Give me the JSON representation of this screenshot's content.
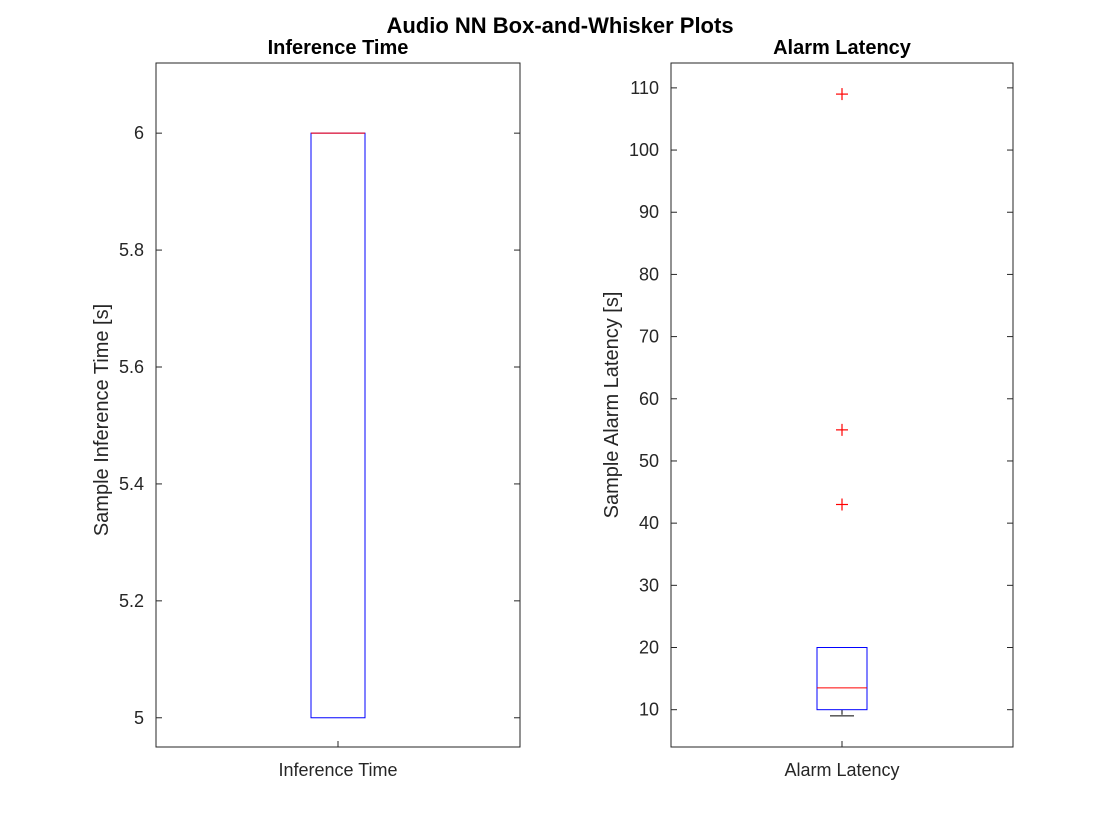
{
  "figure_title": "Audio NN Box-and-Whisker Plots",
  "chart_data": [
    {
      "type": "box",
      "title": "Inference Time",
      "xlabel": "",
      "ylabel": "Sample Inference Time [s]",
      "categories": [
        "Inference Time"
      ],
      "ylim": [
        4.95,
        6.12
      ],
      "yticks": [
        5,
        5.2,
        5.4,
        5.6,
        5.8,
        6
      ],
      "ytick_labels": [
        "5",
        "5.2",
        "5.4",
        "5.6",
        "5.8",
        "6"
      ],
      "box": {
        "whisker_low": 5,
        "q1": 5,
        "median": 6,
        "q3": 6,
        "whisker_high": 6
      },
      "outliers": [],
      "colors": {
        "box": "#0000ff",
        "median": "#ff0000",
        "whisker": "#000000",
        "outlier": "#ff0000"
      }
    },
    {
      "type": "box",
      "title": "Alarm Latency",
      "xlabel": "",
      "ylabel": "Sample Alarm Latency [s]",
      "categories": [
        "Alarm Latency"
      ],
      "ylim": [
        4,
        114
      ],
      "yticks": [
        10,
        20,
        30,
        40,
        50,
        60,
        70,
        80,
        90,
        100,
        110
      ],
      "ytick_labels": [
        "10",
        "20",
        "30",
        "40",
        "50",
        "60",
        "70",
        "80",
        "90",
        "100",
        "110"
      ],
      "box": {
        "whisker_low": 9,
        "q1": 10,
        "median": 13.5,
        "q3": 20,
        "whisker_high": 20
      },
      "outliers": [
        43,
        55,
        109
      ],
      "colors": {
        "box": "#0000ff",
        "median": "#ff0000",
        "whisker": "#000000",
        "outlier": "#ff0000"
      }
    }
  ]
}
